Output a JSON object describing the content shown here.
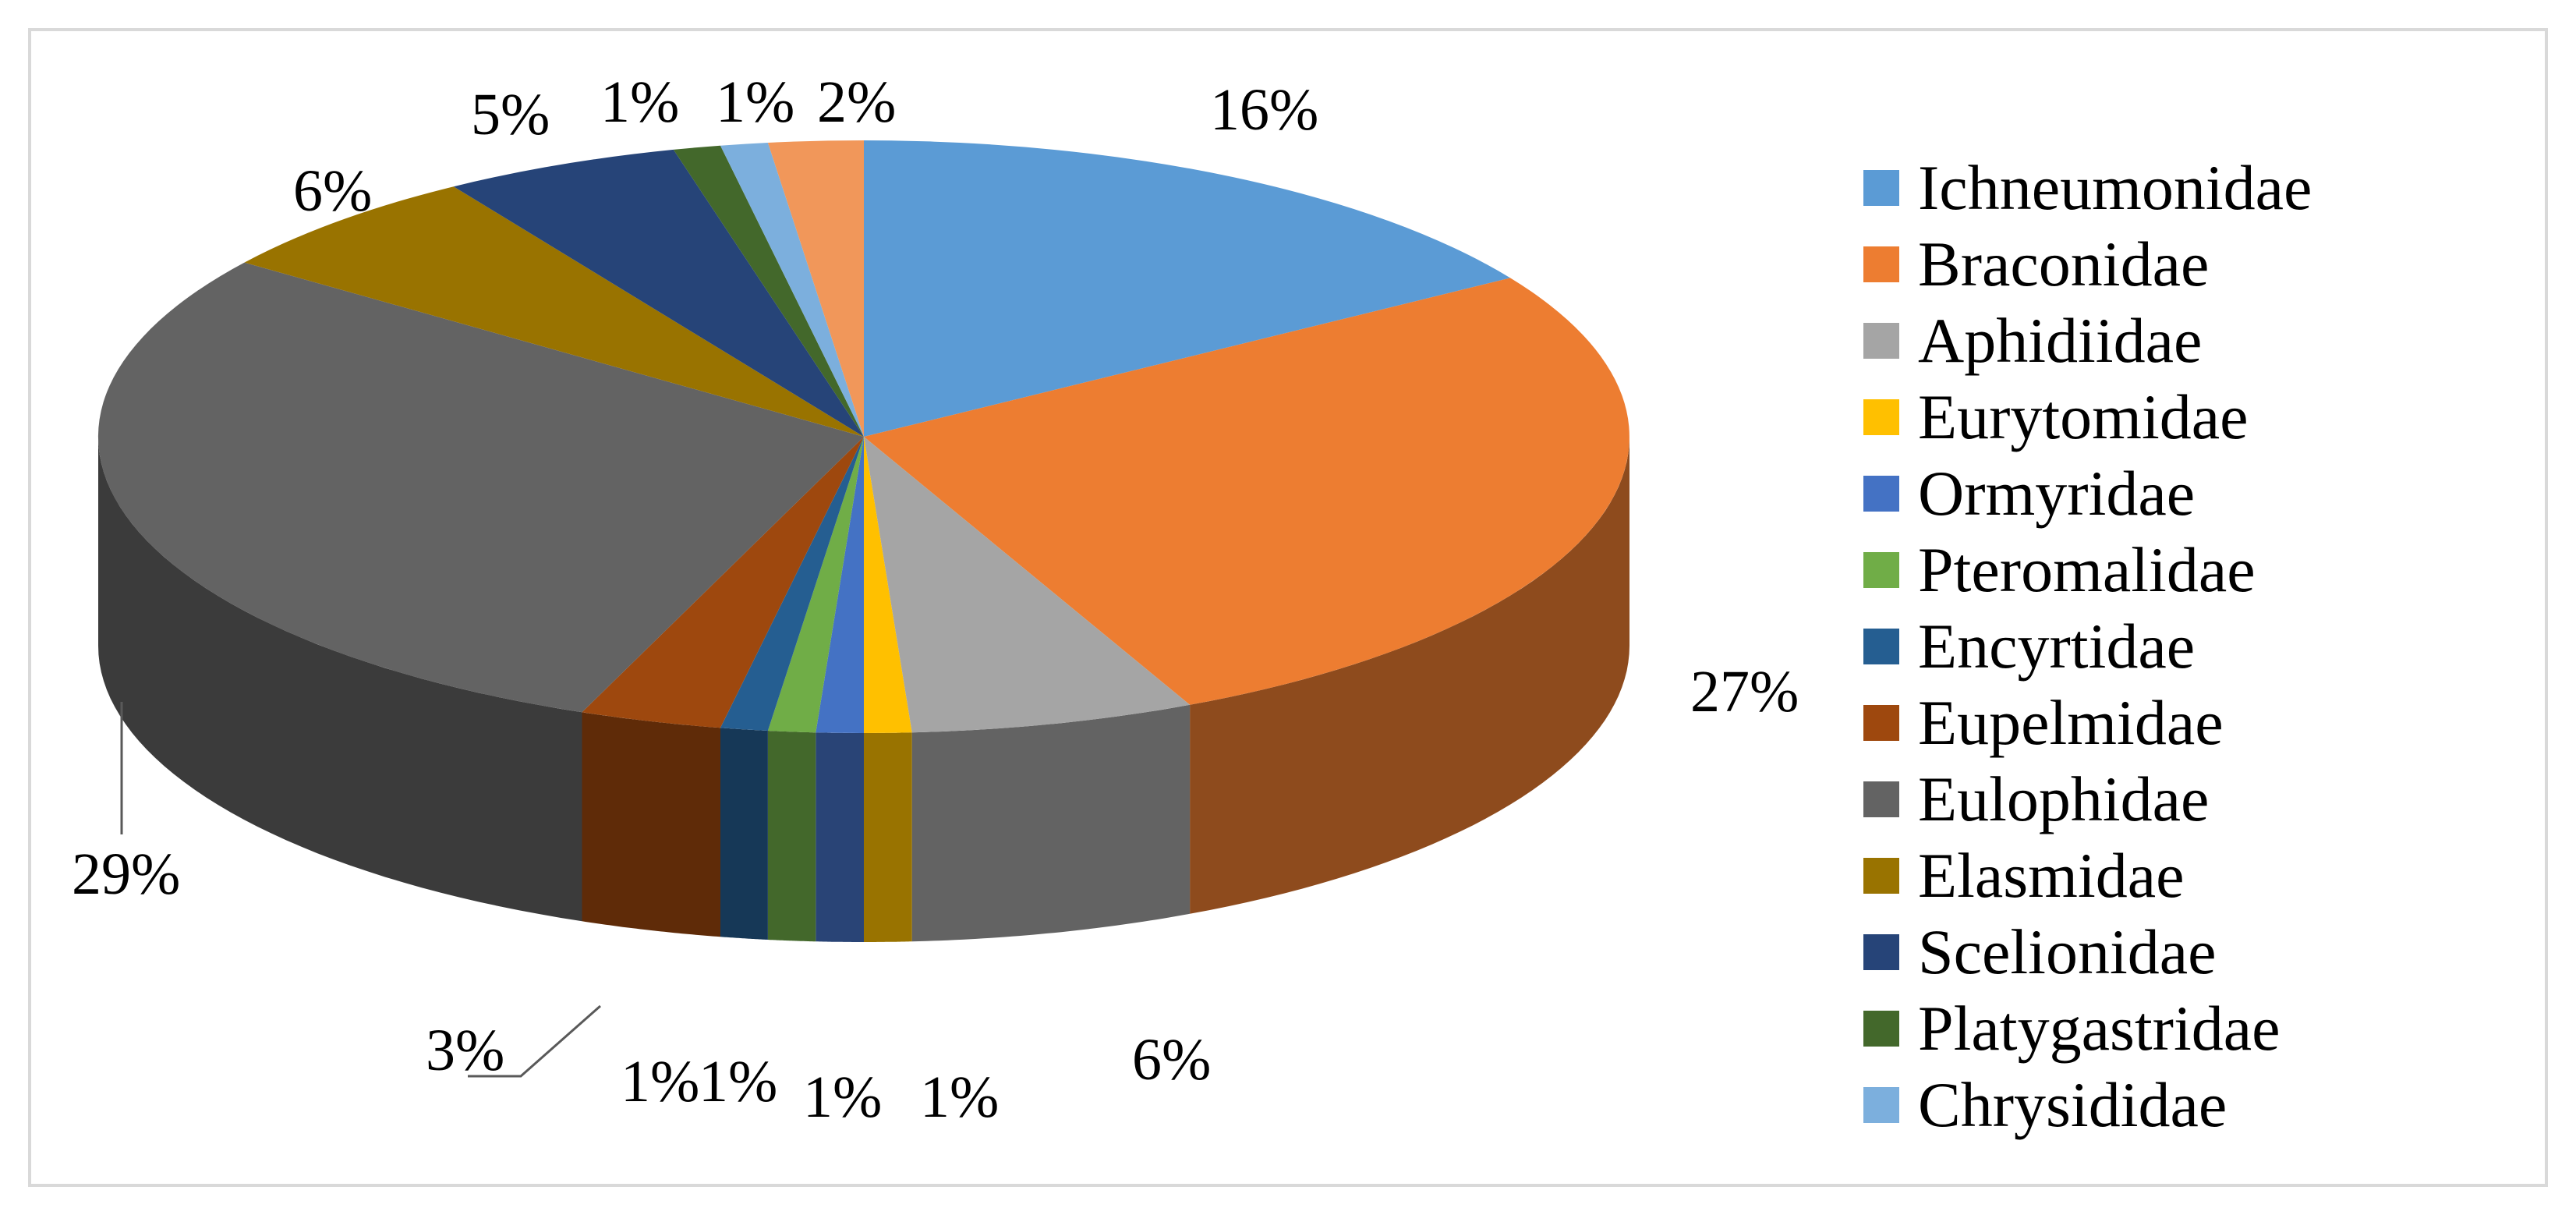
{
  "chart_data": {
    "type": "pie",
    "style": "3d-perspective",
    "legend_position": "right",
    "slices": [
      {
        "name": "Ichneumonidae",
        "value": 16,
        "label": "16%",
        "color": "#5b9bd5"
      },
      {
        "name": "Braconidae",
        "value": 27,
        "label": "27%",
        "color": "#ed7d31"
      },
      {
        "name": "Aphidiidae",
        "value": 6,
        "label": "6%",
        "color": "#a5a5a5"
      },
      {
        "name": "Eurytomidae",
        "value": 1,
        "label": "1%",
        "color": "#ffc000"
      },
      {
        "name": "Ormyridae",
        "value": 1,
        "label": "1%",
        "color": "#4472c4"
      },
      {
        "name": "Pteromalidae",
        "value": 1,
        "label": "1%",
        "color": "#70ad47"
      },
      {
        "name": "Encyrtidae",
        "value": 1,
        "label": "1%",
        "color": "#255e91"
      },
      {
        "name": "Eupelmidae",
        "value": 3,
        "label": "3%",
        "color": "#9e480e"
      },
      {
        "name": "Eulophidae",
        "value": 29,
        "label": "29%",
        "color": "#636363"
      },
      {
        "name": "Elasmidae",
        "value": 6,
        "label": "6%",
        "color": "#997300"
      },
      {
        "name": "Scelionidae",
        "value": 5,
        "label": "5%",
        "color": "#264478"
      },
      {
        "name": "Platygastridae",
        "value": 1,
        "label": "1%",
        "color": "#43682b"
      },
      {
        "name": "Chrysididae",
        "value": 1,
        "label": "1%",
        "color": "#7cafdd"
      },
      {
        "name": "",
        "value": 2,
        "label": "2%",
        "color": "#f1975a"
      }
    ]
  }
}
